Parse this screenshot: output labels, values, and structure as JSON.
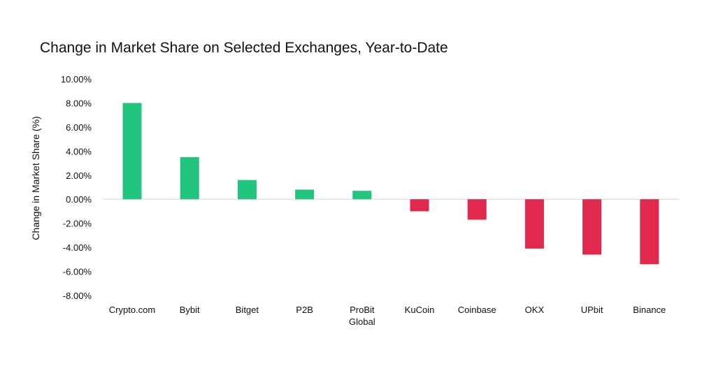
{
  "chart_data": {
    "type": "bar",
    "title": "Change in Market Share on Selected Exchanges, Year-to-Date",
    "xlabel": "",
    "ylabel": "Change in Market Share (%)",
    "ylim": [
      -8,
      10
    ],
    "yticks": [
      "10.00%",
      "8.00%",
      "6.00%",
      "4.00%",
      "2.00%",
      "0.00%",
      "-2.00%",
      "-4.00%",
      "-6.00%",
      "-8.00%"
    ],
    "categories": [
      "Crypto.com",
      "Bybit",
      "Bitget",
      "P2B",
      "ProBit Global",
      "KuCoin",
      "Coinbase",
      "OKX",
      "UPbit",
      "Binance"
    ],
    "values": [
      8.0,
      3.5,
      1.6,
      0.8,
      0.7,
      -1.0,
      -1.7,
      -4.1,
      -4.6,
      -5.4
    ],
    "grid": false,
    "colors": {
      "positive": "#22c57e",
      "negative": "#e0294d",
      "zero_line": "#e4e4e4"
    }
  }
}
